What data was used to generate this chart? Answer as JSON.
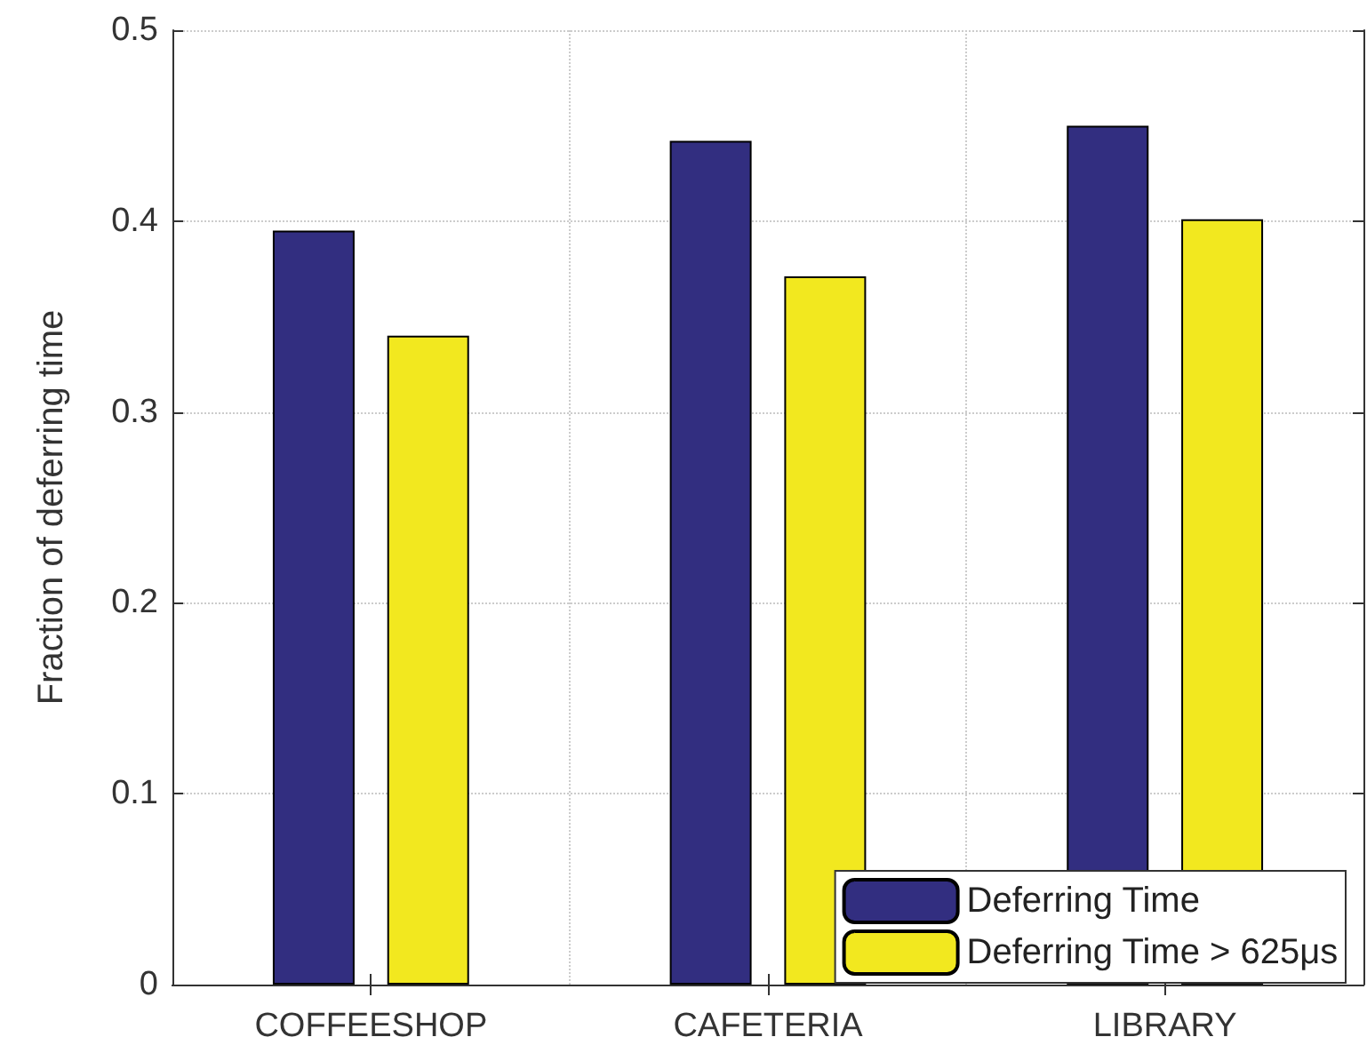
{
  "chart_data": {
    "type": "bar",
    "ylabel": "Fraction of deferring time",
    "categories": [
      "COFFEESHOP",
      "CAFETERIA",
      "LIBRARY"
    ],
    "series": [
      {
        "name": "Deferring Time",
        "color": "#322e80",
        "values": [
          0.395,
          0.442,
          0.45
        ]
      },
      {
        "name": "Deferring Time > 625μs",
        "color": "#f2e81f",
        "values": [
          0.34,
          0.371,
          0.401
        ]
      }
    ],
    "ylim": [
      0,
      0.5
    ],
    "yticks": [
      0,
      0.1,
      0.2,
      0.3,
      0.4,
      0.5
    ],
    "grid": true,
    "legend": "bottom right"
  }
}
